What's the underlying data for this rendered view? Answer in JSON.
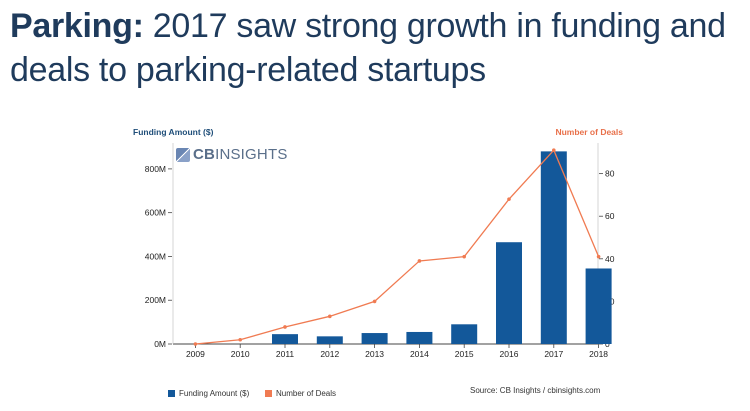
{
  "page": {
    "title_lead": "Parking:",
    "title_rest": " 2017 saw strong growth in funding and deals to parking-related startups",
    "logo_prefix": "CB",
    "logo_suffix": "INSIGHTS",
    "logo_icon": "cbinsights-logo-icon",
    "source": "Source: CB Insights / cbinsights.com"
  },
  "chart_data": {
    "type": "bar",
    "categories": [
      "2009",
      "2010",
      "2011",
      "2012",
      "2013",
      "2014",
      "2015",
      "2016",
      "2017",
      "2018"
    ],
    "series": [
      {
        "name": "Funding Amount ($)",
        "type": "bar",
        "axis": "left",
        "color": "#13589a",
        "values": [
          0,
          0,
          45,
          35,
          50,
          55,
          90,
          465,
          880,
          345
        ]
      },
      {
        "name": "Number of Deals",
        "type": "line",
        "axis": "right",
        "color": "#f07b52",
        "values": [
          0,
          2,
          8,
          13,
          20,
          39,
          41,
          68,
          91,
          41
        ]
      }
    ],
    "ylabel_left": "Funding Amount ($)",
    "ylabel_right": "Number of Deals",
    "ylim_left": [
      0,
      900
    ],
    "ylim_right": [
      0,
      92.5
    ],
    "yticks_left": [
      0,
      200,
      400,
      600,
      800
    ],
    "ytick_labels_left": [
      "0M",
      "200M",
      "400M",
      "600M",
      "800M"
    ],
    "yticks_right": [
      0,
      20,
      40,
      60,
      80
    ],
    "ytick_labels_right": [
      "0",
      "20",
      "40",
      "60",
      "80"
    ],
    "legend": [
      "Funding Amount ($)",
      "Number of Deals"
    ],
    "legend_position": "bottom-left",
    "grid": false
  }
}
